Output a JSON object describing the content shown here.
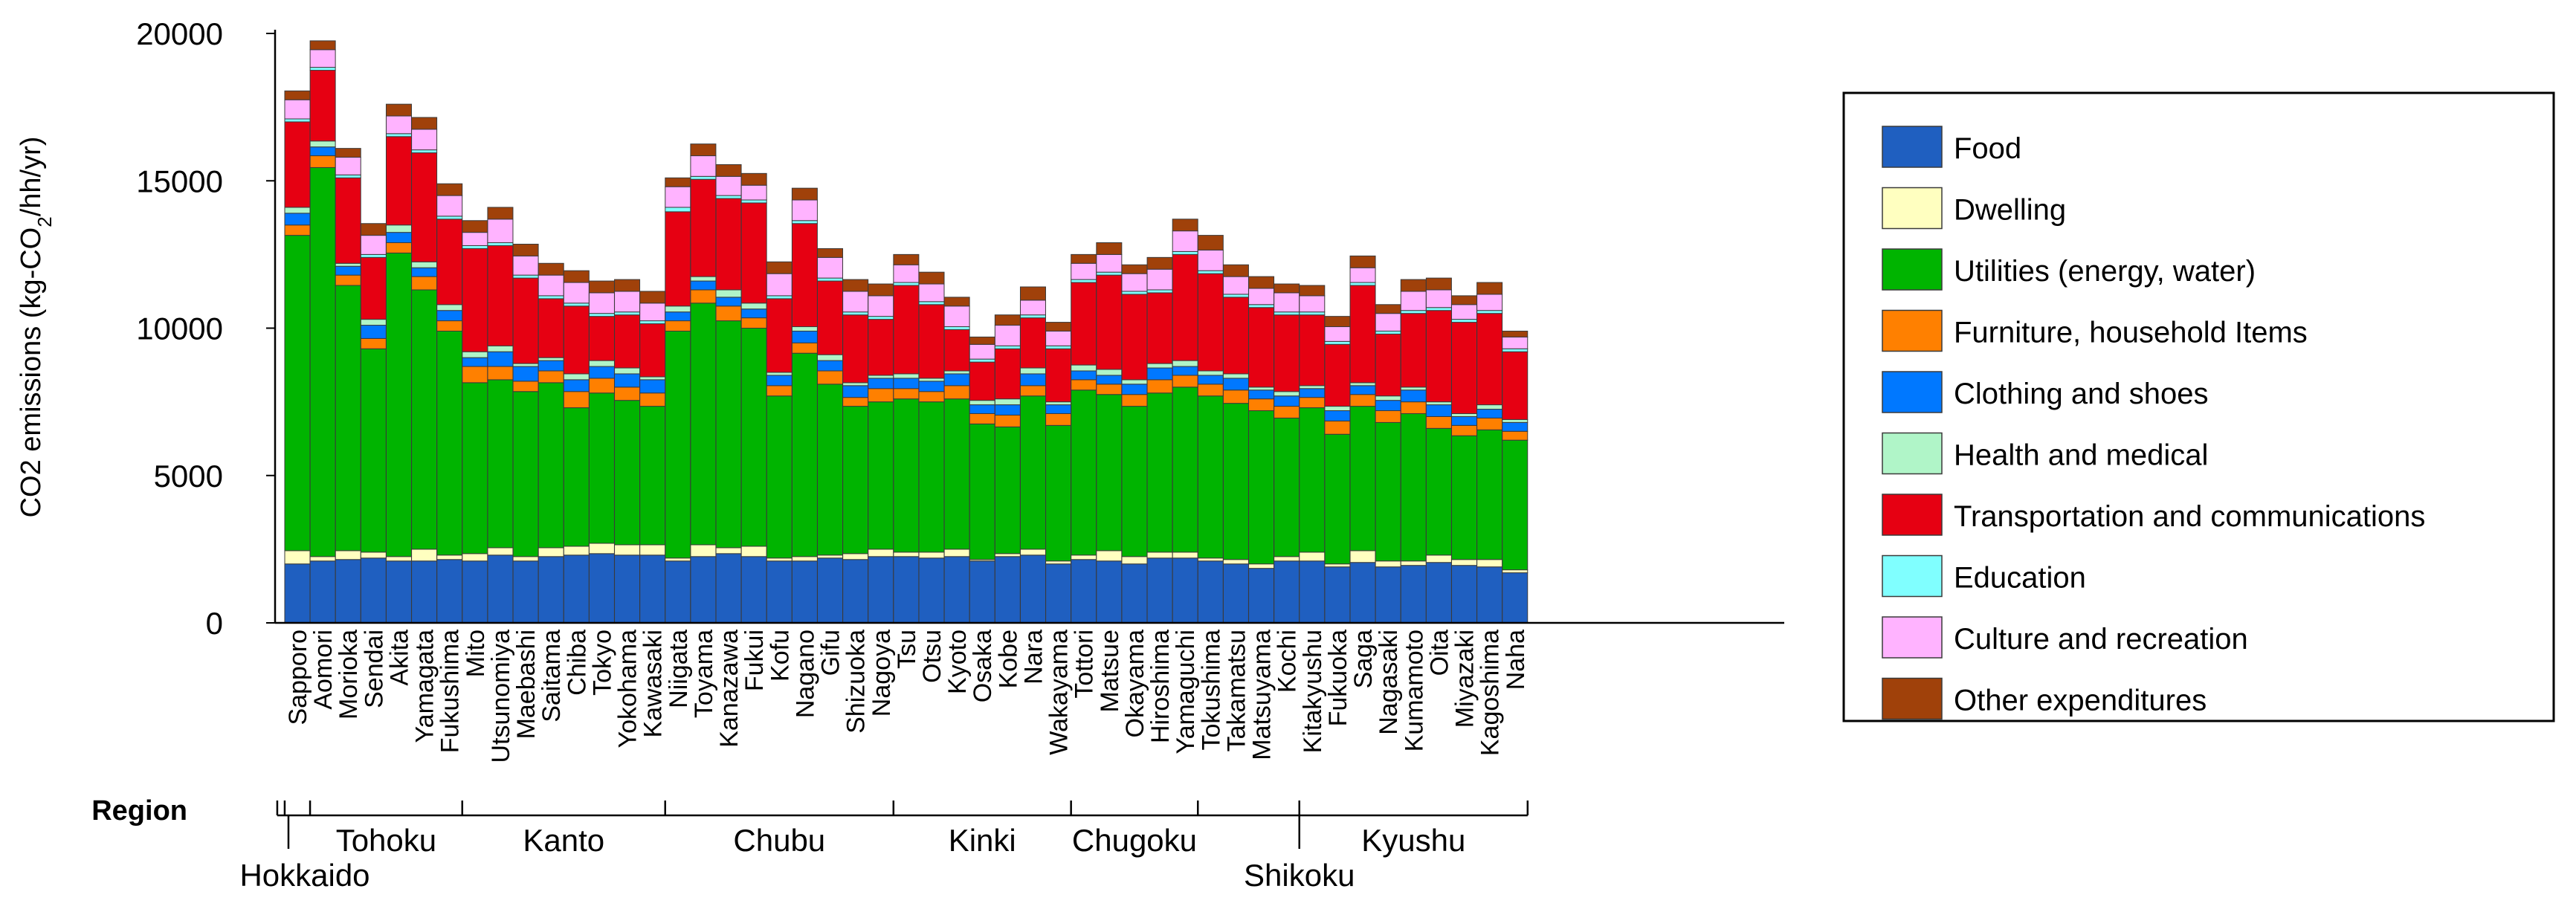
{
  "chart_data": {
    "type": "stacked-bar",
    "ylabel": "CO2 emissions (kg-CO",
    "ylabel_sub": "2",
    "ylabel_tail": "/hh/yr)",
    "ylim": [
      0,
      20000
    ],
    "yticks": [
      0,
      5000,
      10000,
      15000,
      20000
    ],
    "region_title": "Region",
    "categories": [
      "Sapporo",
      "Aomori",
      "Morioka",
      "Sendai",
      "Akita",
      "Yamagata",
      "Fukushima",
      "Mito",
      "Utsunomiya",
      "Maebashi",
      "Saitama",
      "Chiba",
      "Tokyo",
      "Yokohama",
      "Kawasaki",
      "Niigata",
      "Toyama",
      "Kanazawa",
      "Fukui",
      "Kofu",
      "Nagano",
      "Gifu",
      "Shizuoka",
      "Nagoya",
      "Tsu",
      "Otsu",
      "Kyoto",
      "Osaka",
      "Kobe",
      "Nara",
      "Wakayama",
      "Tottori",
      "Matsue",
      "Okayama",
      "Hiroshima",
      "Yamaguchi",
      "Tokushima",
      "Takamatsu",
      "Matsuyama",
      "Kochi",
      "Kitakyushu",
      "Fukuoka",
      "Saga",
      "Nagasaki",
      "Kumamoto",
      "Oita",
      "Miyazaki",
      "Kagoshima",
      "Naha"
    ],
    "regions": [
      {
        "name": "Hokkaido",
        "start": 0,
        "end": 0
      },
      {
        "name": "Tohoku",
        "start": 1,
        "end": 6
      },
      {
        "name": "Kanto",
        "start": 7,
        "end": 14
      },
      {
        "name": "Chubu",
        "start": 15,
        "end": 23
      },
      {
        "name": "Kinki",
        "start": 24,
        "end": 30
      },
      {
        "name": "Chugoku",
        "start": 31,
        "end": 35
      },
      {
        "name": "Shikoku",
        "start": 36,
        "end": 39
      },
      {
        "name": "Kyushu",
        "start": 40,
        "end": 48
      }
    ],
    "series": [
      {
        "name": "Food",
        "color": "#1f5fc0",
        "values": [
          2000,
          2100,
          2150,
          2200,
          2100,
          2100,
          2150,
          2100,
          2300,
          2100,
          2250,
          2300,
          2350,
          2300,
          2300,
          2100,
          2250,
          2350,
          2250,
          2100,
          2100,
          2200,
          2150,
          2250,
          2250,
          2200,
          2250,
          2100,
          2250,
          2300,
          2000,
          2150,
          2100,
          2000,
          2200,
          2200,
          2100,
          2000,
          1850,
          2100,
          2100,
          1900,
          2050,
          1900,
          1950,
          2050,
          1950,
          1900,
          1700
        ]
      },
      {
        "name": "Dwelling",
        "color": "#ffffc0",
        "values": [
          450,
          150,
          300,
          200,
          150,
          400,
          150,
          250,
          250,
          150,
          300,
          300,
          350,
          350,
          350,
          100,
          400,
          200,
          350,
          100,
          150,
          100,
          200,
          250,
          150,
          200,
          250,
          50,
          100,
          200,
          100,
          150,
          350,
          250,
          200,
          200,
          100,
          150,
          150,
          150,
          300,
          100,
          400,
          200,
          150,
          250,
          200,
          250,
          100
        ]
      },
      {
        "name": "Utilities (energy, water)",
        "color": "#00b400",
        "values": [
          10700,
          13200,
          9000,
          6900,
          10300,
          8800,
          7600,
          5800,
          5700,
          5600,
          5600,
          4700,
          5100,
          4900,
          4700,
          7700,
          8200,
          7700,
          7400,
          5500,
          6900,
          5800,
          5000,
          5000,
          5200,
          5100,
          5100,
          4600,
          4300,
          5200,
          4600,
          5600,
          5300,
          5100,
          5400,
          5600,
          5500,
          5300,
          5200,
          4700,
          4900,
          4400,
          4900,
          4700,
          5000,
          4300,
          4200,
          4400,
          4400
        ]
      },
      {
        "name": "Furniture, household Items",
        "color": "#ff8000",
        "values": [
          350,
          400,
          350,
          350,
          350,
          450,
          350,
          550,
          450,
          350,
          400,
          550,
          500,
          450,
          450,
          350,
          450,
          500,
          350,
          350,
          350,
          450,
          300,
          450,
          350,
          350,
          450,
          350,
          400,
          350,
          400,
          350,
          350,
          400,
          450,
          400,
          400,
          450,
          400,
          400,
          350,
          450,
          400,
          400,
          400,
          400,
          350,
          400,
          300
        ]
      },
      {
        "name": "Clothing and shoes",
        "color": "#0078ff",
        "values": [
          400,
          300,
          300,
          450,
          350,
          300,
          350,
          300,
          500,
          500,
          350,
          400,
          400,
          450,
          450,
          300,
          300,
          300,
          300,
          350,
          400,
          350,
          400,
          350,
          350,
          350,
          400,
          300,
          350,
          400,
          300,
          300,
          300,
          350,
          400,
          300,
          300,
          400,
          300,
          350,
          300,
          350,
          300,
          350,
          400,
          400,
          300,
          300,
          300
        ]
      },
      {
        "name": "Health and medical",
        "color": "#b0f5c8",
        "values": [
          200,
          200,
          100,
          200,
          250,
          200,
          200,
          200,
          200,
          100,
          100,
          200,
          200,
          200,
          100,
          200,
          150,
          250,
          200,
          100,
          150,
          200,
          100,
          100,
          150,
          100,
          100,
          150,
          200,
          200,
          100,
          200,
          200,
          150,
          150,
          200,
          150,
          150,
          100,
          150,
          100,
          150,
          100,
          150,
          100,
          100,
          100,
          150,
          100
        ]
      },
      {
        "name": "Transportation and communications",
        "color": "#e60012",
        "values": [
          2900,
          2400,
          2900,
          2100,
          3000,
          3700,
          2900,
          3500,
          3400,
          2900,
          2000,
          2300,
          1500,
          1800,
          1800,
          3200,
          3300,
          3100,
          3400,
          2500,
          3500,
          2500,
          2300,
          1900,
          3000,
          2500,
          1400,
          1300,
          1700,
          1700,
          1800,
          2800,
          3200,
          2900,
          2400,
          3600,
          3300,
          2600,
          2700,
          2600,
          2400,
          2100,
          3300,
          2100,
          2500,
          3100,
          3100,
          3100,
          2300
        ]
      },
      {
        "name": "Education",
        "color": "#80ffff",
        "values": [
          100,
          100,
          100,
          100,
          100,
          100,
          100,
          100,
          100,
          100,
          100,
          100,
          100,
          100,
          100,
          150,
          100,
          100,
          100,
          100,
          100,
          100,
          100,
          100,
          100,
          100,
          100,
          100,
          100,
          100,
          100,
          100,
          100,
          100,
          100,
          100,
          100,
          100,
          100,
          100,
          100,
          100,
          100,
          100,
          100,
          100,
          100,
          100,
          100
        ]
      },
      {
        "name": "Culture and recreation",
        "color": "#ffb3ff",
        "values": [
          650,
          600,
          600,
          650,
          600,
          700,
          700,
          450,
          800,
          650,
          700,
          700,
          700,
          700,
          600,
          700,
          700,
          650,
          500,
          750,
          700,
          700,
          700,
          700,
          600,
          600,
          700,
          500,
          700,
          500,
          500,
          550,
          600,
          600,
          700,
          700,
          700,
          600,
          550,
          650,
          550,
          500,
          500,
          600,
          650,
          600,
          500,
          550,
          400
        ]
      },
      {
        "name": "Other expenditures",
        "color": "#a0410a",
        "values": [
          300,
          300,
          300,
          400,
          400,
          400,
          400,
          400,
          400,
          400,
          400,
          400,
          400,
          400,
          400,
          300,
          400,
          400,
          400,
          400,
          400,
          300,
          400,
          400,
          350,
          400,
          300,
          250,
          350,
          450,
          300,
          300,
          400,
          300,
          400,
          400,
          500,
          400,
          400,
          300,
          350,
          350,
          400,
          300,
          400,
          400,
          300,
          400,
          200
        ]
      }
    ]
  }
}
